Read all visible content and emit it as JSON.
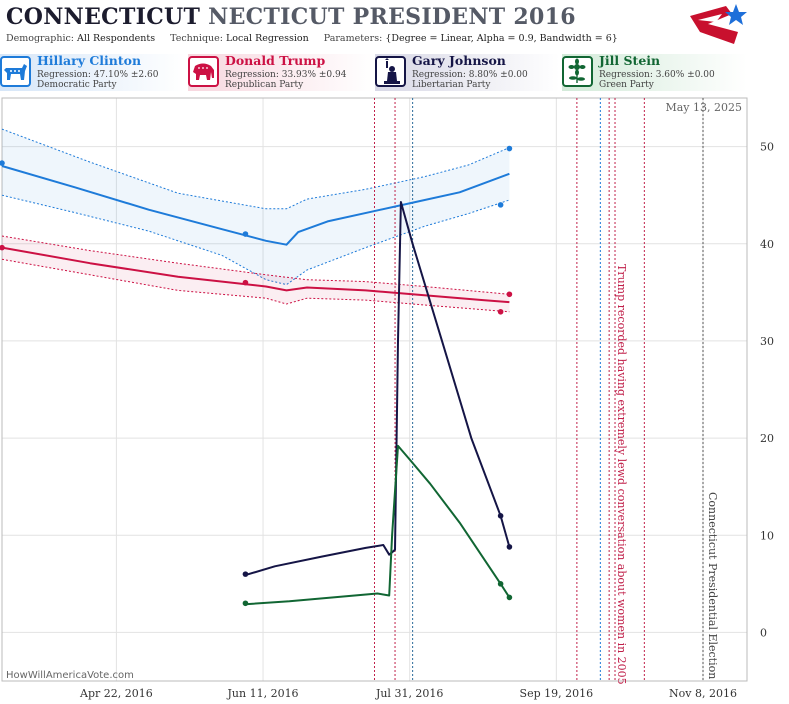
{
  "header": {
    "title_part1": "CONNECTICUT",
    "title_part2": "NECTICUT PRESIDENT 2016",
    "demographic_label": "Demographic:",
    "demographic_value": "All Respondents",
    "technique_label": "Technique:",
    "technique_value": "Local Regression",
    "parameters_label": "Parameters:",
    "parameters_value": "{Degree = Linear, Alpha = 0.9, Bandwidth = 6}"
  },
  "candidates": [
    {
      "name": "Hillary Clinton",
      "regression": "Regression: 47.10% ±2.60",
      "party": "Democratic Party",
      "color": "#1e7bd9",
      "icon": "donkey-icon"
    },
    {
      "name": "Donald Trump",
      "regression": "Regression: 33.93% ±0.94",
      "party": "Republican Party",
      "color": "#cc1144",
      "icon": "elephant-icon"
    },
    {
      "name": "Gary Johnson",
      "regression": "Regression: 8.80% ±0.00",
      "party": "Libertarian Party",
      "color": "#151546",
      "icon": "liberty-torch-icon"
    },
    {
      "name": "Jill Stein",
      "regression": "Regression: 3.60% ±0.00",
      "party": "Green Party",
      "color": "#116633",
      "icon": "sunflower-icon"
    }
  ],
  "date_label": "May 13, 2025",
  "watermark": "HowWillAmericaVote.com",
  "chart_data": {
    "type": "line",
    "x_axis": {
      "type": "date",
      "range": [
        "2016-03-14",
        "2016-11-23"
      ],
      "tick_labels": [
        "Apr 22, 2016",
        "Jun 11, 2016",
        "Jul 31, 2016",
        "Sep 19, 2016",
        "Nov 8, 2016"
      ]
    },
    "y_axis": {
      "range": [
        -5,
        55
      ],
      "ticks": [
        0,
        10,
        20,
        30,
        40,
        50
      ],
      "position": "right"
    },
    "grid": true,
    "series": [
      {
        "name": "Hillary Clinton",
        "color": "#1e7bd9",
        "points": [
          [
            "2016-03-14",
            48.3
          ],
          [
            "2016-06-05",
            41
          ],
          [
            "2016-08-31",
            44
          ],
          [
            "2016-09-03",
            49.8
          ]
        ],
        "trend": [
          [
            "2016-03-14",
            48
          ],
          [
            "2016-04-08",
            45.8
          ],
          [
            "2016-05-03",
            43.5
          ],
          [
            "2016-05-28",
            41.5
          ],
          [
            "2016-06-12",
            40.3
          ],
          [
            "2016-06-19",
            39.9
          ],
          [
            "2016-06-23",
            41.2
          ],
          [
            "2016-07-03",
            42.3
          ],
          [
            "2016-07-18",
            43.3
          ],
          [
            "2016-08-02",
            44.3
          ],
          [
            "2016-08-17",
            45.3
          ],
          [
            "2016-09-03",
            47.2
          ]
        ],
        "band_upper": [
          [
            "2016-03-14",
            51.8
          ],
          [
            "2016-04-13",
            48.4
          ],
          [
            "2016-05-13",
            45.2
          ],
          [
            "2016-06-12",
            43.6
          ],
          [
            "2016-06-19",
            43.6
          ],
          [
            "2016-06-26",
            44.6
          ],
          [
            "2016-07-16",
            45.6
          ],
          [
            "2016-08-05",
            46.9
          ],
          [
            "2016-08-20",
            48.1
          ],
          [
            "2016-09-03",
            49.9
          ]
        ],
        "band_lower": [
          [
            "2016-03-14",
            45
          ],
          [
            "2016-04-08",
            43.2
          ],
          [
            "2016-05-03",
            41.3
          ],
          [
            "2016-05-28",
            38.8
          ],
          [
            "2016-06-12",
            36.3
          ],
          [
            "2016-06-19",
            35.8
          ],
          [
            "2016-06-26",
            37.3
          ],
          [
            "2016-07-16",
            39.6
          ],
          [
            "2016-08-05",
            41.8
          ],
          [
            "2016-08-20",
            43.1
          ],
          [
            "2016-09-03",
            44.5
          ]
        ]
      },
      {
        "name": "Donald Trump",
        "color": "#cc1144",
        "points": [
          [
            "2016-03-14",
            39.6
          ],
          [
            "2016-06-05",
            36
          ],
          [
            "2016-08-31",
            33
          ],
          [
            "2016-09-03",
            34.8
          ]
        ],
        "trend": [
          [
            "2016-03-14",
            39.6
          ],
          [
            "2016-04-13",
            38
          ],
          [
            "2016-05-13",
            36.6
          ],
          [
            "2016-06-12",
            35.6
          ],
          [
            "2016-06-19",
            35.2
          ],
          [
            "2016-06-26",
            35.5
          ],
          [
            "2016-07-16",
            35.2
          ],
          [
            "2016-08-05",
            34.7
          ],
          [
            "2016-08-25",
            34.2
          ],
          [
            "2016-09-03",
            34
          ]
        ],
        "band_upper": [
          [
            "2016-03-14",
            40.8
          ],
          [
            "2016-04-13",
            39.3
          ],
          [
            "2016-05-13",
            38
          ],
          [
            "2016-06-12",
            36.8
          ],
          [
            "2016-06-26",
            36.3
          ],
          [
            "2016-07-16",
            36.1
          ],
          [
            "2016-08-05",
            35.6
          ],
          [
            "2016-09-03",
            34.8
          ]
        ],
        "band_lower": [
          [
            "2016-03-14",
            38.4
          ],
          [
            "2016-04-13",
            36.8
          ],
          [
            "2016-05-13",
            35.2
          ],
          [
            "2016-06-12",
            34.4
          ],
          [
            "2016-06-19",
            33.8
          ],
          [
            "2016-06-26",
            34.4
          ],
          [
            "2016-07-16",
            34.2
          ],
          [
            "2016-08-05",
            33.7
          ],
          [
            "2016-09-03",
            33
          ]
        ]
      },
      {
        "name": "Gary Johnson",
        "color": "#151546",
        "points": [
          [
            "2016-06-05",
            6
          ],
          [
            "2016-08-31",
            12
          ],
          [
            "2016-09-03",
            8.8
          ]
        ],
        "trend": [
          [
            "2016-06-05",
            5.9
          ],
          [
            "2016-06-15",
            6.8
          ],
          [
            "2016-07-01",
            7.8
          ],
          [
            "2016-07-16",
            8.7
          ],
          [
            "2016-07-22",
            9
          ],
          [
            "2016-07-24",
            8
          ],
          [
            "2016-07-26",
            8.5
          ],
          [
            "2016-07-27",
            30
          ],
          [
            "2016-07-28",
            44.3
          ],
          [
            "2016-08-01",
            40
          ],
          [
            "2016-08-11",
            30
          ],
          [
            "2016-08-21",
            20
          ],
          [
            "2016-08-31",
            12
          ],
          [
            "2016-09-03",
            8.8
          ]
        ]
      },
      {
        "name": "Jill Stein",
        "color": "#116633",
        "points": [
          [
            "2016-06-05",
            3
          ],
          [
            "2016-08-31",
            5
          ],
          [
            "2016-09-03",
            3.6
          ]
        ],
        "trend": [
          [
            "2016-06-05",
            2.9
          ],
          [
            "2016-06-20",
            3.2
          ],
          [
            "2016-07-05",
            3.6
          ],
          [
            "2016-07-20",
            4
          ],
          [
            "2016-07-24",
            3.8
          ],
          [
            "2016-07-25",
            10
          ],
          [
            "2016-07-27",
            19.2
          ],
          [
            "2016-07-31",
            17.8
          ],
          [
            "2016-08-07",
            15.3
          ],
          [
            "2016-08-17",
            11.3
          ],
          [
            "2016-08-31",
            5
          ],
          [
            "2016-09-03",
            3.6
          ]
        ]
      }
    ],
    "event_lines": [
      {
        "date": "2016-07-19",
        "color": "#c0204a"
      },
      {
        "date": "2016-07-26",
        "color": "#c0204a"
      },
      {
        "date": "2016-08-01",
        "color": "#2a6a9a"
      },
      {
        "date": "2016-09-26",
        "color": "#c0204a"
      },
      {
        "date": "2016-10-04",
        "color": "#1e7bd9"
      },
      {
        "date": "2016-10-07",
        "color": "#c0204a"
      },
      {
        "date": "2016-10-09",
        "color": "#c0204a"
      },
      {
        "date": "2016-10-19",
        "color": "#c0204a"
      },
      {
        "date": "2016-11-08",
        "color": "#555555"
      }
    ],
    "annotations": [
      {
        "date": "2016-10-10",
        "text": "Trump recorded having extremely lewd conversation about women in 2005",
        "color": "#c0204a"
      },
      {
        "date": "2016-11-10",
        "text": "Connecticut Presidential Election",
        "color": "#444444"
      }
    ]
  }
}
